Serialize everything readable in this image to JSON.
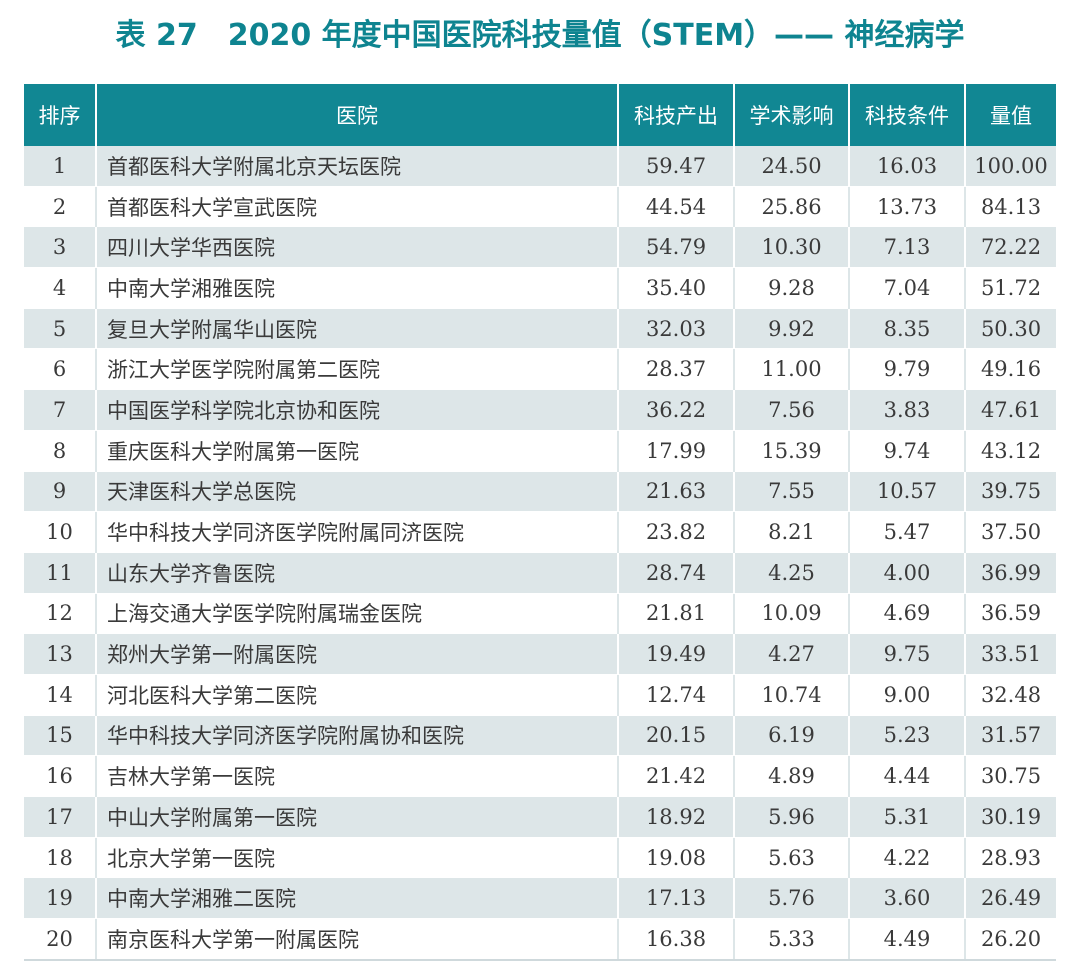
{
  "title": "表 27　2020 年度中国医院科技量值（STEM）—— 神经病学",
  "table": {
    "headers": [
      "排序",
      "医院",
      "科技产出",
      "学术影响",
      "科技条件",
      "量值"
    ],
    "rows": [
      [
        "1",
        "首都医科大学附属北京天坛医院",
        "59.47",
        "24.50",
        "16.03",
        "100.00"
      ],
      [
        "2",
        "首都医科大学宣武医院",
        "44.54",
        "25.86",
        "13.73",
        "84.13"
      ],
      [
        "3",
        "四川大学华西医院",
        "54.79",
        "10.30",
        "7.13",
        "72.22"
      ],
      [
        "4",
        "中南大学湘雅医院",
        "35.40",
        "9.28",
        "7.04",
        "51.72"
      ],
      [
        "5",
        "复旦大学附属华山医院",
        "32.03",
        "9.92",
        "8.35",
        "50.30"
      ],
      [
        "6",
        "浙江大学医学院附属第二医院",
        "28.37",
        "11.00",
        "9.79",
        "49.16"
      ],
      [
        "7",
        "中国医学科学院北京协和医院",
        "36.22",
        "7.56",
        "3.83",
        "47.61"
      ],
      [
        "8",
        "重庆医科大学附属第一医院",
        "17.99",
        "15.39",
        "9.74",
        "43.12"
      ],
      [
        "9",
        "天津医科大学总医院",
        "21.63",
        "7.55",
        "10.57",
        "39.75"
      ],
      [
        "10",
        "华中科技大学同济医学院附属同济医院",
        "23.82",
        "8.21",
        "5.47",
        "37.50"
      ],
      [
        "11",
        "山东大学齐鲁医院",
        "28.74",
        "4.25",
        "4.00",
        "36.99"
      ],
      [
        "12",
        "上海交通大学医学院附属瑞金医院",
        "21.81",
        "10.09",
        "4.69",
        "36.59"
      ],
      [
        "13",
        "郑州大学第一附属医院",
        "19.49",
        "4.27",
        "9.75",
        "33.51"
      ],
      [
        "14",
        "河北医科大学第二医院",
        "12.74",
        "10.74",
        "9.00",
        "32.48"
      ],
      [
        "15",
        "华中科技大学同济医学院附属协和医院",
        "20.15",
        "6.19",
        "5.23",
        "31.57"
      ],
      [
        "16",
        "吉林大学第一医院",
        "21.42",
        "4.89",
        "4.44",
        "30.75"
      ],
      [
        "17",
        "中山大学附属第一医院",
        "18.92",
        "5.96",
        "5.31",
        "30.19"
      ],
      [
        "18",
        "北京大学第一医院",
        "19.08",
        "5.63",
        "4.22",
        "28.93"
      ],
      [
        "19",
        "中南大学湘雅二医院",
        "17.13",
        "5.76",
        "3.60",
        "26.49"
      ],
      [
        "20",
        "南京医科大学第一附属医院",
        "16.38",
        "5.33",
        "4.49",
        "26.20"
      ]
    ]
  }
}
